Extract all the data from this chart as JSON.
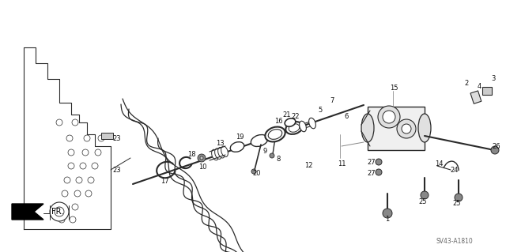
{
  "bg_color": "#ffffff",
  "diagram_code": "SV43-A1810",
  "line_color": "#2a2a2a",
  "gray": "#555555"
}
